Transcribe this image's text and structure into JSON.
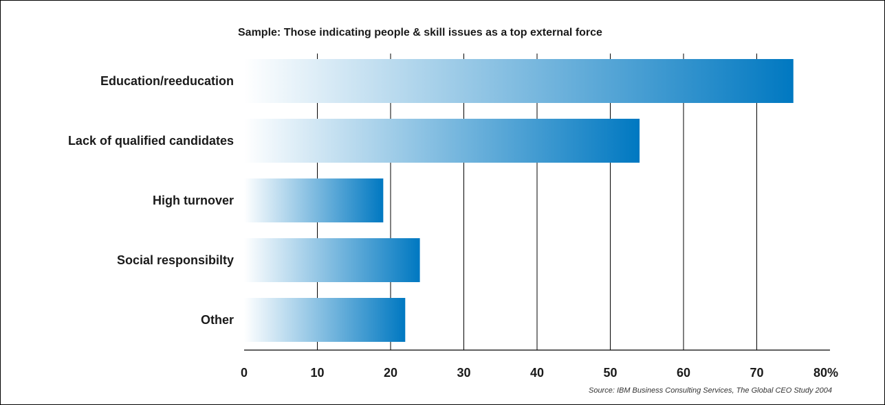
{
  "chart_data": {
    "type": "bar",
    "orientation": "horizontal",
    "title": "Sample: Those indicating people & skill issues as a top external force",
    "categories": [
      "Education/reeducation",
      "Lack of qualified candidates",
      "High turnover",
      "Social responsibilty",
      "Other"
    ],
    "values": [
      75,
      54,
      19,
      24,
      22
    ],
    "xlabel": "",
    "ylabel": "",
    "xlim": [
      0,
      80
    ],
    "x_ticks": [
      "0",
      "10",
      "20",
      "30",
      "40",
      "50",
      "60",
      "70",
      "80%"
    ],
    "grid": true,
    "source": "Source: IBM Business Consulting Services, The Global CEO Study 2004"
  },
  "colors": {
    "bar_start": "#ffffff",
    "bar_end": "#0078c1",
    "gridline": "#000000"
  }
}
